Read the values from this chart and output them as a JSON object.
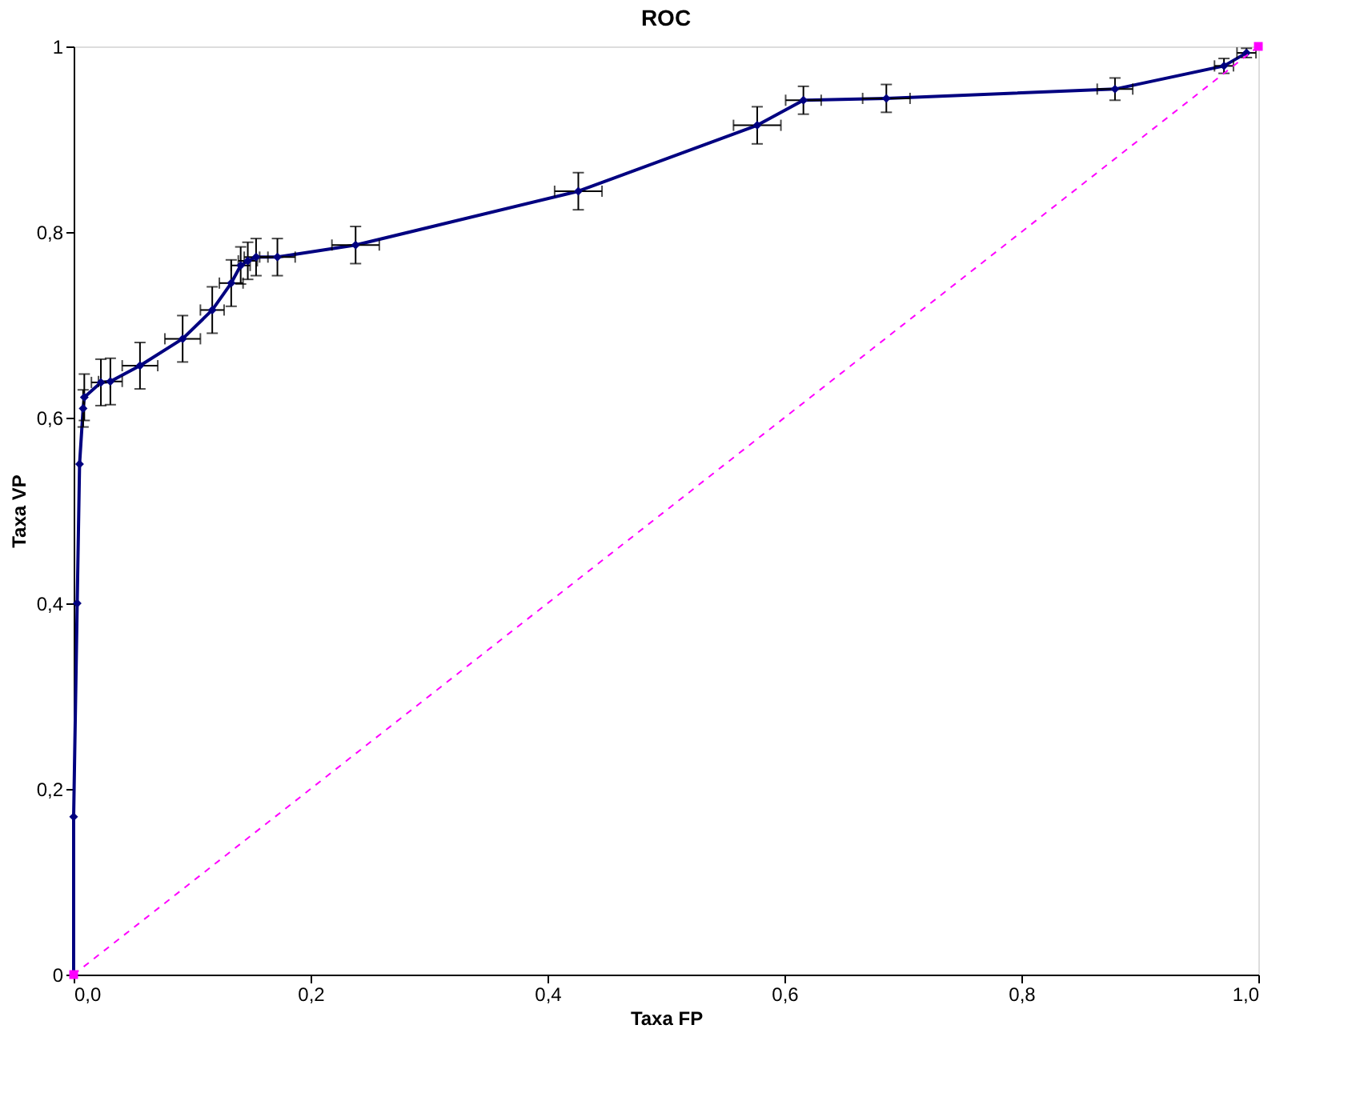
{
  "chart_data": {
    "type": "line",
    "title": "ROC",
    "xlabel": "Taxa FP",
    "ylabel": "Taxa VP",
    "xlim": [
      0,
      1
    ],
    "ylim": [
      0,
      1
    ],
    "xticks": [
      {
        "value": 0,
        "label": "0,0"
      },
      {
        "value": 0.2,
        "label": "0,2"
      },
      {
        "value": 0.4,
        "label": "0,4"
      },
      {
        "value": 0.6,
        "label": "0,6"
      },
      {
        "value": 0.8,
        "label": "0,8"
      },
      {
        "value": 1,
        "label": "1,0"
      }
    ],
    "yticks": [
      0,
      {
        "value": 0.2,
        "label": "0,2"
      },
      {
        "value": 0.4,
        "label": "0,4"
      },
      {
        "value": 0.6,
        "label": "0,6"
      },
      {
        "value": 0.8,
        "label": "0,8"
      },
      1
    ],
    "grid": false,
    "series": [
      {
        "color": "#000080",
        "marker": "diamond",
        "line_style": "solid",
        "x": [
          0,
          0,
          0.003,
          0.005,
          0.008,
          0.009,
          0.023,
          0.031,
          0.056,
          0.092,
          0.117,
          0.133,
          0.141,
          0.147,
          0.154,
          0.172,
          0.238,
          0.426,
          0.577,
          0.616,
          0.686,
          0.879,
          0.971,
          0.99
        ],
        "values": [
          0,
          0.17,
          0.4,
          0.55,
          0.61,
          0.622,
          0.638,
          0.639,
          0.656,
          0.685,
          0.716,
          0.745,
          0.764,
          0.769,
          0.773,
          0.773,
          0.786,
          0.844,
          0.915,
          0.942,
          0.944,
          0.954,
          0.979,
          0.993
        ],
        "errors": [
          null,
          null,
          null,
          null,
          0.02,
          0.025,
          0.025,
          0.025,
          0.025,
          0.025,
          0.025,
          0.025,
          0.02,
          0.02,
          0.02,
          0.02,
          0.02,
          0.02,
          0.02,
          0.015,
          0.015,
          0.012,
          0.008,
          0.005
        ],
        "xerrors": [
          null,
          null,
          null,
          null,
          null,
          null,
          0.008,
          0.01,
          0.015,
          0.015,
          0.01,
          0.01,
          0.008,
          0.008,
          0.01,
          0.015,
          0.02,
          0.02,
          0.02,
          0.015,
          0.02,
          0.015,
          0.008,
          0.008
        ]
      },
      {
        "color": "#ff00ff",
        "marker": "square",
        "line_style": "dashed",
        "x": [
          0,
          1
        ],
        "values": [
          0,
          1
        ]
      }
    ]
  }
}
